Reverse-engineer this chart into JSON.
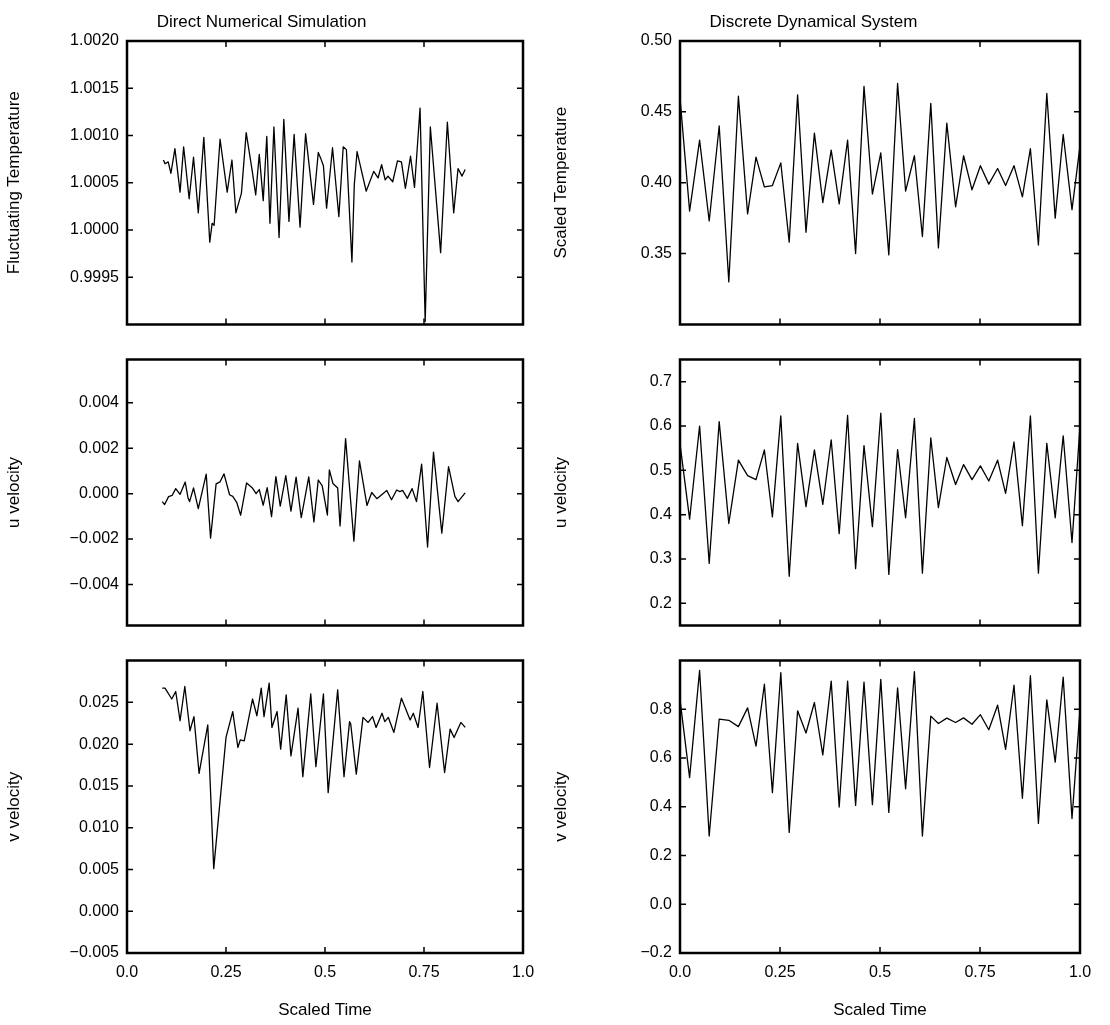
{
  "chart_data": [
    {
      "type": "line",
      "title": "Direct Numerical Simulation",
      "ylabel": "Fluctuating Temperature",
      "color": "#000000",
      "xlim": [
        0,
        1
      ],
      "xticks": [
        {
          "value": 0.25,
          "label": null
        },
        {
          "value": 0.5,
          "label": null
        },
        {
          "value": 0.75,
          "label": null
        }
      ],
      "ylim": [
        0.999,
        1.002
      ],
      "yticks": [
        0.9995,
        {
          "value": 1,
          "label": "1.0000"
        },
        1.0005,
        {
          "value": 1.001,
          "label": "1.0010"
        },
        1.0015,
        {
          "value": 1.002,
          "label": "1.0020"
        }
      ],
      "tick_labels": "y",
      "x": [
        0.092,
        0.096,
        0.104,
        0.111,
        0.121,
        0.134,
        0.143,
        0.157,
        0.168,
        0.18,
        0.194,
        0.209,
        0.215,
        0.22,
        0.235,
        0.253,
        0.265,
        0.275,
        0.289,
        0.301,
        0.316,
        0.325,
        0.334,
        0.344,
        0.353,
        0.361,
        0.371,
        0.384,
        0.396,
        0.409,
        0.422,
        0.437,
        0.451,
        0.471,
        0.483,
        0.489,
        0.496,
        0.504,
        0.519,
        0.535,
        0.546,
        0.554,
        0.568,
        0.574,
        0.581,
        0.604,
        0.623,
        0.634,
        0.643,
        0.652,
        0.659,
        0.671,
        0.683,
        0.693,
        0.703,
        0.716,
        0.726,
        0.74,
        0.753,
        0.766,
        0.792,
        0.809,
        0.825,
        0.836,
        0.846,
        0.854
      ],
      "values": [
        1.00074,
        1.0007,
        1.00072,
        1.0006,
        1.00086,
        1.0004,
        1.00088,
        1.00033,
        1.00077,
        1.00018,
        1.00098,
        0.99987,
        1.00007,
        1.00005,
        1.00096,
        1.0004,
        1.00074,
        1.00018,
        1.00039,
        1.00103,
        1.00063,
        1.00037,
        1.0008,
        1.00031,
        1.00099,
        1.00007,
        1.00109,
        0.99992,
        1.00117,
        1.00009,
        1.00101,
        1.00003,
        1.00102,
        1.00027,
        1.00082,
        1.00076,
        1.00068,
        1.00023,
        1.00087,
        1.00014,
        1.00088,
        1.00085,
        0.99966,
        1.00048,
        1.00083,
        1.00041,
        1.00062,
        1.00055,
        1.00069,
        1.00053,
        1.00057,
        1.00051,
        1.00073,
        1.00072,
        1.00044,
        1.00078,
        1.00045,
        1.00129,
        0.99903,
        1.00109,
        0.99976,
        1.00114,
        1.00018,
        1.00065,
        1.00057,
        1.00064
      ]
    },
    {
      "type": "line",
      "title": "Discrete Dynamical System",
      "ylabel": "Scaled Temperature",
      "color": "#000000",
      "xlim": [
        0,
        1
      ],
      "xticks": [
        {
          "value": 0.25,
          "label": null
        },
        {
          "value": 0.5,
          "label": null
        },
        {
          "value": 0.75,
          "label": null
        }
      ],
      "ylim": [
        0.3,
        0.5
      ],
      "yticks": [
        0.35,
        {
          "value": 0.4,
          "label": "0.40"
        },
        0.45,
        {
          "value": 0.5,
          "label": "0.50"
        }
      ],
      "tick_labels": "y",
      "x": [
        0,
        0.024,
        0.049,
        0.073,
        0.098,
        0.122,
        0.146,
        0.169,
        0.19,
        0.211,
        0.231,
        0.252,
        0.273,
        0.294,
        0.315,
        0.336,
        0.357,
        0.378,
        0.398,
        0.419,
        0.439,
        0.46,
        0.481,
        0.502,
        0.522,
        0.544,
        0.564,
        0.586,
        0.606,
        0.627,
        0.646,
        0.667,
        0.689,
        0.709,
        0.73,
        0.751,
        0.772,
        0.794,
        0.814,
        0.835,
        0.856,
        0.876,
        0.896,
        0.917,
        0.938,
        0.958,
        0.98,
        1.0
      ],
      "values": [
        0.46,
        0.38,
        0.43,
        0.373,
        0.44,
        0.33,
        0.461,
        0.378,
        0.418,
        0.397,
        0.398,
        0.414,
        0.358,
        0.462,
        0.365,
        0.435,
        0.386,
        0.423,
        0.385,
        0.43,
        0.35,
        0.468,
        0.392,
        0.421,
        0.349,
        0.47,
        0.394,
        0.419,
        0.362,
        0.456,
        0.354,
        0.442,
        0.383,
        0.419,
        0.395,
        0.412,
        0.399,
        0.41,
        0.398,
        0.412,
        0.39,
        0.424,
        0.356,
        0.463,
        0.375,
        0.434,
        0.381,
        0.426
      ]
    },
    {
      "type": "line",
      "ylabel": "u velocity",
      "color": "#000000",
      "xlim": [
        0,
        1
      ],
      "xticks": [
        {
          "value": 0.25,
          "label": null
        },
        {
          "value": 0.5,
          "label": null
        },
        {
          "value": 0.75,
          "label": null
        }
      ],
      "ylim": [
        -0.0058,
        0.0059
      ],
      "yticks": [
        {
          "value": -0.004,
          "label": "−0.004"
        },
        {
          "value": -0.002,
          "label": "−0.002"
        },
        {
          "value": 0,
          "label": "0.000"
        },
        0.002,
        0.004
      ],
      "tick_labels": "y",
      "x": [
        0.089,
        0.095,
        0.105,
        0.114,
        0.123,
        0.134,
        0.147,
        0.154,
        0.158,
        0.168,
        0.18,
        0.2,
        0.211,
        0.225,
        0.235,
        0.245,
        0.259,
        0.267,
        0.277,
        0.287,
        0.302,
        0.316,
        0.326,
        0.334,
        0.344,
        0.354,
        0.365,
        0.376,
        0.387,
        0.401,
        0.414,
        0.427,
        0.44,
        0.459,
        0.472,
        0.483,
        0.493,
        0.506,
        0.511,
        0.52,
        0.532,
        0.538,
        0.552,
        0.573,
        0.587,
        0.606,
        0.618,
        0.631,
        0.656,
        0.668,
        0.681,
        0.689,
        0.696,
        0.708,
        0.72,
        0.731,
        0.744,
        0.759,
        0.774,
        0.795,
        0.812,
        0.828,
        0.836,
        0.854
      ],
      "values": [
        -0.00035,
        -0.00048,
        -0.00013,
        -8e-05,
        0.00022,
        -3e-05,
        0.00051,
        -0.00018,
        -0.00035,
        0.00025,
        -0.00066,
        0.00086,
        -0.00196,
        0.00043,
        0.00052,
        0.00087,
        -5e-05,
        -0.00012,
        -0.00038,
        -0.00095,
        0.00047,
        0.00026,
        0,
        0.00018,
        -0.00051,
        0.00026,
        -0.00101,
        0.00075,
        -0.00055,
        0.00079,
        -0.00077,
        0.00073,
        -0.00106,
        0.00074,
        -0.00125,
        0.0006,
        0.00034,
        -0.00094,
        0.00104,
        0.00045,
        0.00025,
        -0.00142,
        0.00242,
        -0.00209,
        0.00144,
        -0.00052,
        5e-05,
        -0.00022,
        0.00014,
        -0.00027,
        0.00016,
        9e-05,
        0.00014,
        -0.00021,
        0.00022,
        -0.00035,
        0.0013,
        -0.00235,
        0.00183,
        -0.00174,
        0.00119,
        -0.00012,
        -0.00035,
        3e-05
      ]
    },
    {
      "type": "line",
      "ylabel": "u velocity",
      "color": "#000000",
      "xlim": [
        0,
        1
      ],
      "xticks": [
        {
          "value": 0.25,
          "label": null
        },
        {
          "value": 0.5,
          "label": null
        },
        {
          "value": 0.75,
          "label": null
        }
      ],
      "ylim": [
        0.15,
        0.75
      ],
      "yticks": [
        0.2,
        0.3,
        0.4,
        0.5,
        0.6,
        0.7
      ],
      "tick_labels": "y",
      "x": [
        0,
        0.024,
        0.049,
        0.073,
        0.098,
        0.122,
        0.146,
        0.169,
        0.19,
        0.211,
        0.231,
        0.252,
        0.273,
        0.294,
        0.315,
        0.336,
        0.357,
        0.378,
        0.398,
        0.419,
        0.439,
        0.46,
        0.481,
        0.502,
        0.522,
        0.544,
        0.564,
        0.586,
        0.606,
        0.627,
        0.646,
        0.667,
        0.689,
        0.709,
        0.73,
        0.751,
        0.772,
        0.794,
        0.814,
        0.835,
        0.856,
        0.876,
        0.896,
        0.917,
        0.938,
        0.958,
        0.98,
        1.0
      ],
      "values": [
        0.56,
        0.39,
        0.6,
        0.29,
        0.61,
        0.38,
        0.523,
        0.488,
        0.479,
        0.546,
        0.395,
        0.623,
        0.261,
        0.561,
        0.418,
        0.546,
        0.423,
        0.569,
        0.357,
        0.624,
        0.278,
        0.556,
        0.373,
        0.629,
        0.265,
        0.547,
        0.393,
        0.617,
        0.268,
        0.573,
        0.416,
        0.529,
        0.468,
        0.513,
        0.479,
        0.51,
        0.476,
        0.523,
        0.448,
        0.564,
        0.375,
        0.623,
        0.268,
        0.561,
        0.393,
        0.578,
        0.337,
        0.6
      ]
    },
    {
      "type": "line",
      "xlabel": "Scaled Time",
      "ylabel": "v velocity",
      "color": "#000000",
      "xlim": [
        0,
        1
      ],
      "xticks": [
        {
          "value": 0,
          "label": "0.0"
        },
        0.25,
        0.5,
        0.75,
        {
          "value": 1,
          "label": "1.0"
        }
      ],
      "ylim": [
        -0.005,
        0.03
      ],
      "yticks": [
        {
          "value": -0.005,
          "label": "−0.005"
        },
        {
          "value": 0,
          "label": "0.000"
        },
        0.005,
        {
          "value": 0.01,
          "label": "0.010"
        },
        0.015,
        {
          "value": 0.02,
          "label": "0.020"
        },
        0.025
      ],
      "x": [
        0.089,
        0.096,
        0.113,
        0.123,
        0.134,
        0.146,
        0.159,
        0.169,
        0.182,
        0.204,
        0.219,
        0.25,
        0.267,
        0.28,
        0.286,
        0.296,
        0.317,
        0.328,
        0.339,
        0.346,
        0.359,
        0.366,
        0.379,
        0.388,
        0.402,
        0.414,
        0.432,
        0.444,
        0.464,
        0.477,
        0.496,
        0.508,
        0.532,
        0.548,
        0.562,
        0.565,
        0.579,
        0.596,
        0.609,
        0.62,
        0.629,
        0.644,
        0.651,
        0.66,
        0.674,
        0.693,
        0.715,
        0.723,
        0.735,
        0.747,
        0.764,
        0.783,
        0.802,
        0.816,
        0.826,
        0.843,
        0.854
      ],
      "values": [
        0.0267,
        0.0267,
        0.0254,
        0.0263,
        0.0228,
        0.0269,
        0.0216,
        0.0233,
        0.0165,
        0.0223,
        0.0051,
        0.0208,
        0.0239,
        0.0196,
        0.0205,
        0.0204,
        0.0254,
        0.0234,
        0.0267,
        0.0233,
        0.0273,
        0.022,
        0.0239,
        0.0194,
        0.0259,
        0.0186,
        0.0243,
        0.0161,
        0.026,
        0.0173,
        0.026,
        0.0142,
        0.0265,
        0.0161,
        0.0227,
        0.0224,
        0.0164,
        0.0232,
        0.0226,
        0.0233,
        0.022,
        0.0237,
        0.0227,
        0.0232,
        0.0214,
        0.0255,
        0.0229,
        0.0237,
        0.022,
        0.0263,
        0.0172,
        0.0249,
        0.0166,
        0.0218,
        0.0208,
        0.0226,
        0.022
      ]
    },
    {
      "type": "line",
      "xlabel": "Scaled Time",
      "ylabel": "v velocity",
      "color": "#000000",
      "xlim": [
        0,
        1
      ],
      "xticks": [
        {
          "value": 0,
          "label": "0.0"
        },
        0.25,
        0.5,
        0.75,
        {
          "value": 1,
          "label": "1.0"
        }
      ],
      "ylim": [
        -0.2,
        1.0
      ],
      "yticks": [
        {
          "value": -0.2,
          "label": "−0.2"
        },
        {
          "value": 0,
          "label": "0.0"
        },
        0.2,
        0.4,
        0.6,
        0.8
      ],
      "x": [
        0,
        0.024,
        0.049,
        0.073,
        0.098,
        0.122,
        0.146,
        0.169,
        0.19,
        0.211,
        0.231,
        0.252,
        0.273,
        0.294,
        0.315,
        0.336,
        0.357,
        0.378,
        0.398,
        0.419,
        0.439,
        0.46,
        0.481,
        0.502,
        0.522,
        0.544,
        0.564,
        0.586,
        0.606,
        0.627,
        0.646,
        0.667,
        0.689,
        0.709,
        0.73,
        0.751,
        0.772,
        0.794,
        0.814,
        0.835,
        0.856,
        0.876,
        0.896,
        0.917,
        0.938,
        0.958,
        0.98,
        1.0
      ],
      "values": [
        0.84,
        0.52,
        0.96,
        0.28,
        0.76,
        0.755,
        0.729,
        0.806,
        0.649,
        0.903,
        0.458,
        0.951,
        0.295,
        0.794,
        0.703,
        0.828,
        0.613,
        0.916,
        0.399,
        0.916,
        0.406,
        0.912,
        0.409,
        0.923,
        0.377,
        0.888,
        0.474,
        0.955,
        0.28,
        0.772,
        0.742,
        0.764,
        0.746,
        0.765,
        0.739,
        0.778,
        0.716,
        0.817,
        0.636,
        0.899,
        0.435,
        0.938,
        0.332,
        0.839,
        0.583,
        0.932,
        0.352,
        0.8
      ]
    }
  ]
}
